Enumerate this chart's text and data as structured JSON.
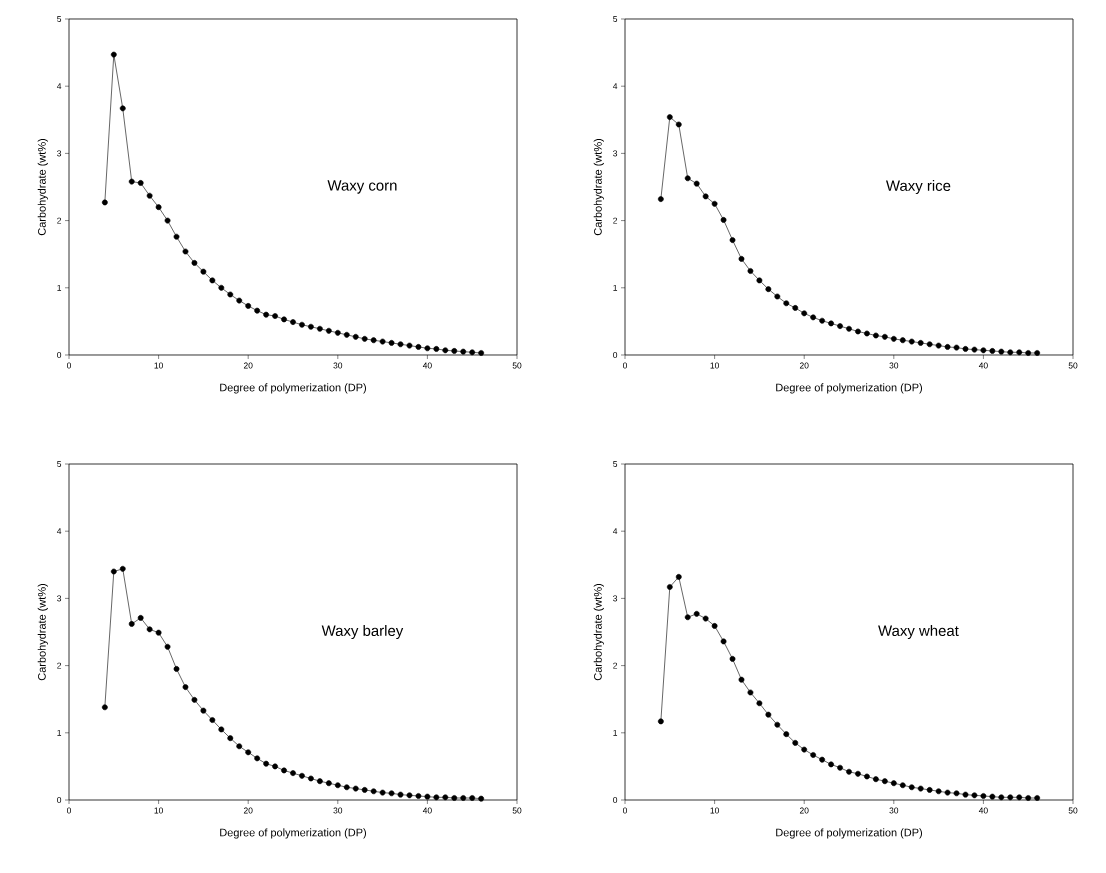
{
  "chart_data": [
    {
      "type": "line",
      "xlabel": "Degree of polymerization (DP)",
      "ylabel": "Carbohydrate (wt%)",
      "annotations": [
        "Waxy corn"
      ],
      "xlim": [
        0,
        50
      ],
      "ylim": [
        0,
        5
      ],
      "xticks": [
        0,
        10,
        20,
        30,
        40,
        50
      ],
      "yticks": [
        0,
        1,
        2,
        3,
        4,
        5
      ],
      "marker": "circle",
      "line_style": "solid",
      "x": [
        4,
        5,
        6,
        7,
        8,
        9,
        10,
        11,
        12,
        13,
        14,
        15,
        16,
        17,
        18,
        19,
        20,
        21,
        22,
        23,
        24,
        25,
        26,
        27,
        28,
        29,
        30,
        31,
        32,
        33,
        34,
        35,
        36,
        37,
        38,
        39,
        40,
        41,
        42,
        43,
        44,
        45,
        46
      ],
      "series": [
        {
          "color": "#000000",
          "values": [
            2.27,
            4.47,
            3.67,
            2.58,
            2.56,
            2.37,
            2.2,
            2.0,
            1.76,
            1.54,
            1.37,
            1.24,
            1.11,
            1.0,
            0.9,
            0.81,
            0.73,
            0.66,
            0.6,
            0.58,
            0.53,
            0.49,
            0.45,
            0.42,
            0.39,
            0.36,
            0.33,
            0.3,
            0.27,
            0.24,
            0.22,
            0.2,
            0.18,
            0.16,
            0.14,
            0.12,
            0.1,
            0.09,
            0.07,
            0.06,
            0.05,
            0.04,
            0.03
          ]
        }
      ]
    },
    {
      "type": "line",
      "xlabel": "Degree of polymerization (DP)",
      "ylabel": "Carbohydrate (wt%)",
      "annotations": [
        "Waxy rice"
      ],
      "xlim": [
        0,
        50
      ],
      "ylim": [
        0,
        5
      ],
      "xticks": [
        0,
        10,
        20,
        30,
        40,
        50
      ],
      "yticks": [
        0,
        1,
        2,
        3,
        4,
        5
      ],
      "marker": "circle",
      "line_style": "solid",
      "x": [
        4,
        5,
        6,
        7,
        8,
        9,
        10,
        11,
        12,
        13,
        14,
        15,
        16,
        17,
        18,
        19,
        20,
        21,
        22,
        23,
        24,
        25,
        26,
        27,
        28,
        29,
        30,
        31,
        32,
        33,
        34,
        35,
        36,
        37,
        38,
        39,
        40,
        41,
        42,
        43,
        44,
        45,
        46
      ],
      "series": [
        {
          "color": "#000000",
          "values": [
            2.32,
            3.54,
            3.43,
            2.63,
            2.55,
            2.36,
            2.25,
            2.01,
            1.71,
            1.43,
            1.25,
            1.11,
            0.98,
            0.87,
            0.77,
            0.7,
            0.62,
            0.56,
            0.51,
            0.47,
            0.43,
            0.39,
            0.35,
            0.32,
            0.29,
            0.27,
            0.24,
            0.22,
            0.2,
            0.18,
            0.16,
            0.14,
            0.12,
            0.11,
            0.09,
            0.08,
            0.07,
            0.06,
            0.05,
            0.04,
            0.04,
            0.03,
            0.03
          ]
        }
      ]
    },
    {
      "type": "line",
      "xlabel": "Degree of polymerization (DP)",
      "ylabel": "Carbohydrate (wt%)",
      "annotations": [
        "Waxy barley"
      ],
      "xlim": [
        0,
        50
      ],
      "ylim": [
        0,
        5
      ],
      "xticks": [
        0,
        10,
        20,
        30,
        40,
        50
      ],
      "yticks": [
        0,
        1,
        2,
        3,
        4,
        5
      ],
      "marker": "circle",
      "line_style": "solid",
      "x": [
        4,
        5,
        6,
        7,
        8,
        9,
        10,
        11,
        12,
        13,
        14,
        15,
        16,
        17,
        18,
        19,
        20,
        21,
        22,
        23,
        24,
        25,
        26,
        27,
        28,
        29,
        30,
        31,
        32,
        33,
        34,
        35,
        36,
        37,
        38,
        39,
        40,
        41,
        42,
        43,
        44,
        45,
        46
      ],
      "series": [
        {
          "color": "#000000",
          "values": [
            1.38,
            3.4,
            3.44,
            2.62,
            2.71,
            2.54,
            2.49,
            2.28,
            1.95,
            1.68,
            1.49,
            1.33,
            1.19,
            1.05,
            0.92,
            0.8,
            0.71,
            0.62,
            0.54,
            0.5,
            0.44,
            0.4,
            0.36,
            0.32,
            0.28,
            0.25,
            0.22,
            0.19,
            0.17,
            0.15,
            0.13,
            0.11,
            0.1,
            0.08,
            0.07,
            0.06,
            0.05,
            0.04,
            0.04,
            0.03,
            0.03,
            0.03,
            0.02
          ]
        }
      ]
    },
    {
      "type": "line",
      "xlabel": "Degree of polymerization (DP)",
      "ylabel": "Carbohydrate (wt%)",
      "annotations": [
        "Waxy wheat"
      ],
      "xlim": [
        0,
        50
      ],
      "ylim": [
        0,
        5
      ],
      "xticks": [
        0,
        10,
        20,
        30,
        40,
        50
      ],
      "yticks": [
        0,
        1,
        2,
        3,
        4,
        5
      ],
      "marker": "circle",
      "line_style": "solid",
      "x": [
        4,
        5,
        6,
        7,
        8,
        9,
        10,
        11,
        12,
        13,
        14,
        15,
        16,
        17,
        18,
        19,
        20,
        21,
        22,
        23,
        24,
        25,
        26,
        27,
        28,
        29,
        30,
        31,
        32,
        33,
        34,
        35,
        36,
        37,
        38,
        39,
        40,
        41,
        42,
        43,
        44,
        45,
        46
      ],
      "series": [
        {
          "color": "#000000",
          "values": [
            1.17,
            3.17,
            3.32,
            2.72,
            2.77,
            2.7,
            2.59,
            2.36,
            2.1,
            1.79,
            1.6,
            1.44,
            1.27,
            1.12,
            0.98,
            0.85,
            0.75,
            0.67,
            0.6,
            0.53,
            0.48,
            0.42,
            0.39,
            0.35,
            0.31,
            0.28,
            0.25,
            0.22,
            0.19,
            0.17,
            0.15,
            0.13,
            0.11,
            0.1,
            0.08,
            0.07,
            0.06,
            0.05,
            0.04,
            0.04,
            0.04,
            0.03,
            0.03
          ]
        }
      ]
    }
  ]
}
